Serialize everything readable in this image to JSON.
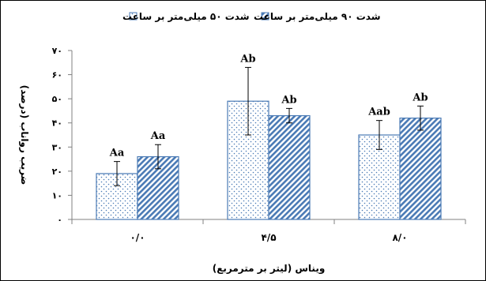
{
  "chart_data": {
    "type": "bar",
    "categories": [
      "۰/۰",
      "۴/۵",
      "۸/۰"
    ],
    "series": [
      {
        "name": "شدت ۵۰ میلی‌متر بر ساعت",
        "values": [
          19,
          49,
          35
        ],
        "errors": [
          5,
          14,
          6
        ],
        "labels": [
          "Aa",
          "Ab",
          "Aab"
        ],
        "pattern": "dots"
      },
      {
        "name": "شدت ۹۰ میلی‌متر بر ساعت",
        "values": [
          26,
          43,
          42
        ],
        "errors": [
          5,
          3,
          5
        ],
        "labels": [
          "Aa",
          "Ab",
          "Ab"
        ],
        "pattern": "stripes"
      }
    ],
    "yticks": [
      "۰",
      "۱۰",
      "۲۰",
      "۳۰",
      "۴۰",
      "۵۰",
      "۶۰",
      "۷۰"
    ],
    "ylim": [
      0,
      70
    ],
    "xlabel": "ویناس (لیتر بر مترمربع)",
    "ylabel": "ضریب رواناب (درصد)",
    "legend_position": "top",
    "grid": false,
    "colors": {
      "bar_outline": "#4a7ab5",
      "bar_fill": "#ffffff",
      "pattern": "#4a7ab5",
      "axis": "#808080",
      "error": "#000000"
    }
  }
}
